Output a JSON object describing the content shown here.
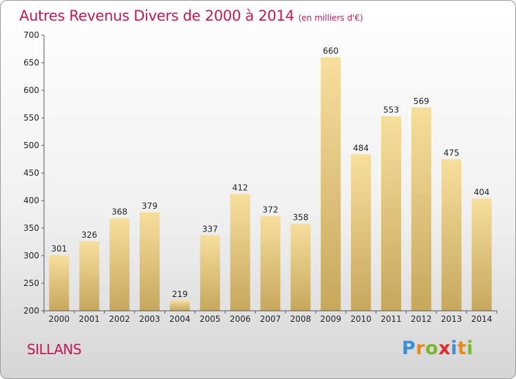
{
  "title": "Autres Revenus Divers de 2000 à 2014",
  "unit": "(en milliers d'€)",
  "commune": "SILLANS",
  "logo": {
    "text": "Proxiti",
    "letters": [
      {
        "ch": "P",
        "color": "#3a8fd6"
      },
      {
        "ch": "r",
        "color": "#e88a1c"
      },
      {
        "ch": "o",
        "color": "#7ab82e"
      },
      {
        "ch": "x",
        "color": "#e52a2a"
      },
      {
        "ch": "i",
        "color": "#3a8fd6"
      },
      {
        "ch": "t",
        "color": "#e88a1c"
      },
      {
        "ch": "i",
        "color": "#7ab82e"
      }
    ]
  },
  "chart_data": {
    "type": "bar",
    "title": "Autres Revenus Divers de 2000 à 2014",
    "categories": [
      "2000",
      "2001",
      "2002",
      "2003",
      "2004",
      "2005",
      "2006",
      "2007",
      "2008",
      "2009",
      "2010",
      "2011",
      "2012",
      "2013",
      "2014"
    ],
    "values": [
      301,
      326,
      368,
      379,
      219,
      337,
      412,
      372,
      358,
      660,
      484,
      553,
      569,
      475,
      404
    ],
    "ylim": [
      200,
      700
    ],
    "yticks": [
      200,
      250,
      300,
      350,
      400,
      450,
      500,
      550,
      600,
      650,
      700
    ],
    "grid": false,
    "xlabel": "",
    "ylabel": "",
    "colors": {
      "bar_light": "#f7df9c",
      "bar_dark": "#c7a75d",
      "text": "#222222",
      "accent": "#c0185a"
    }
  }
}
